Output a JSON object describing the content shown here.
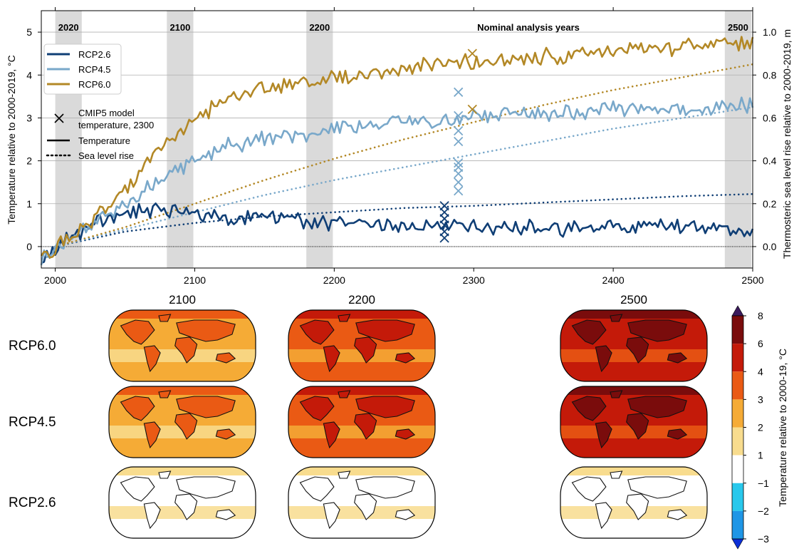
{
  "chart_data": [
    {
      "type": "line",
      "xlabel": "",
      "ylabel": "Temperature relative to 2000-2019, °C",
      "y2label": "Thermosteric sea level rise relative to 2000-2019, m",
      "xlim": [
        1990,
        2500
      ],
      "ylim": [
        -0.5,
        5.5
      ],
      "y2lim": [
        -0.1,
        1.1
      ],
      "x_ticks": [
        "2000",
        "2100",
        "2200",
        "2300",
        "2400",
        "2500"
      ],
      "y_ticks": [
        "0",
        "1",
        "2",
        "3",
        "4",
        "5"
      ],
      "y2_ticks": [
        "0.0",
        "0.2",
        "0.4",
        "0.6",
        "0.8",
        "1.0"
      ],
      "grid": "horizontal",
      "legend_placement": "top-left",
      "analysis_periods": [
        {
          "label": "2020",
          "start": 2000,
          "end": 2019
        },
        {
          "label": "2100",
          "start": 2080,
          "end": 2099
        },
        {
          "label": "2200",
          "start": 2180,
          "end": 2199
        },
        {
          "label": "2500",
          "start": 2480,
          "end": 2499
        }
      ],
      "annotation": "Nominal analysis years",
      "series": [
        {
          "name": "RCP2.6",
          "color": "#0f3e75",
          "temperature": {
            "x": [
              1990,
              2000,
              2010,
              2020,
              2030,
              2040,
              2050,
              2060,
              2070,
              2080,
              2100,
              2120,
              2150,
              2200,
              2250,
              2300,
              2350,
              2400,
              2450,
              2500
            ],
            "y": [
              -0.3,
              0.0,
              0.15,
              0.35,
              0.55,
              0.7,
              0.8,
              0.85,
              0.85,
              0.8,
              0.75,
              0.7,
              0.65,
              0.55,
              0.5,
              0.45,
              0.4,
              0.45,
              0.45,
              0.4
            ]
          },
          "sea_level": {
            "x": [
              2000,
              2050,
              2100,
              2150,
              2200,
              2250,
              2300,
              2350,
              2400,
              2450,
              2500
            ],
            "y": [
              0.0,
              0.07,
              0.11,
              0.14,
              0.16,
              0.18,
              0.19,
              0.205,
              0.22,
              0.235,
              0.245
            ]
          },
          "cmip5_2300": [
            0.2,
            0.35,
            0.5,
            0.65,
            0.8,
            0.95
          ]
        },
        {
          "name": "RCP4.5",
          "color": "#79a8ca",
          "temperature": {
            "x": [
              1990,
              2000,
              2010,
              2020,
              2030,
              2040,
              2050,
              2060,
              2080,
              2100,
              2120,
              2150,
              2200,
              2250,
              2300,
              2350,
              2400,
              2450,
              2500
            ],
            "y": [
              -0.3,
              0.0,
              0.15,
              0.4,
              0.6,
              0.8,
              1.0,
              1.2,
              1.6,
              2.0,
              2.3,
              2.5,
              2.7,
              2.9,
              3.0,
              3.1,
              3.2,
              3.25,
              3.3
            ]
          },
          "sea_level": {
            "x": [
              2000,
              2050,
              2100,
              2150,
              2200,
              2250,
              2300,
              2350,
              2400,
              2450,
              2500
            ],
            "y": [
              0.0,
              0.08,
              0.16,
              0.24,
              0.31,
              0.37,
              0.43,
              0.49,
              0.55,
              0.6,
              0.65
            ]
          },
          "cmip5_2300": [
            1.3,
            1.5,
            1.7,
            1.85,
            1.95,
            2.45,
            2.7,
            3.05,
            3.6
          ]
        },
        {
          "name": "RCP6.0",
          "color": "#b38826",
          "temperature": {
            "x": [
              1990,
              2000,
              2010,
              2020,
              2030,
              2040,
              2050,
              2060,
              2080,
              2100,
              2120,
              2150,
              2200,
              2250,
              2300,
              2350,
              2400,
              2450,
              2500
            ],
            "y": [
              -0.3,
              0.0,
              0.2,
              0.45,
              0.7,
              1.0,
              1.35,
              1.7,
              2.4,
              3.0,
              3.4,
              3.7,
              3.95,
              4.15,
              4.3,
              4.45,
              4.55,
              4.65,
              4.75
            ]
          },
          "sea_level": {
            "x": [
              2000,
              2050,
              2100,
              2150,
              2200,
              2250,
              2300,
              2350,
              2400,
              2450,
              2500
            ],
            "y": [
              0.0,
              0.09,
              0.2,
              0.31,
              0.41,
              0.5,
              0.58,
              0.66,
              0.73,
              0.79,
              0.85
            ]
          },
          "cmip5_2300": [
            3.2,
            4.5
          ]
        }
      ]
    },
    {
      "type": "heatmap",
      "panels": "global temperature change maps",
      "column_titles": [
        "2100",
        "2200",
        "2500"
      ],
      "row_labels": [
        "RCP6.0",
        "RCP4.5",
        "RCP2.6"
      ],
      "colorbar": {
        "label": "Temperature relative to 2000-19, °C",
        "ticks": [
          "−3",
          "−2",
          "−1",
          "1",
          "2",
          "3",
          "4",
          "6",
          "8"
        ],
        "levels": [
          -3,
          -2,
          -1,
          1,
          2,
          3,
          4,
          6,
          8
        ],
        "colors": [
          "#1a44e8",
          "#1f96e6",
          "#28c8ec",
          "#ffffff",
          "#f8dc8e",
          "#f5ab36",
          "#ea5a14",
          "#c41a09",
          "#7a0c0c"
        ],
        "extend": "both",
        "over_color": "#3b1a5c",
        "under_color": "#0c2fd6"
      }
    }
  ],
  "legend": {
    "entries": [
      "RCP2.6",
      "RCP4.5",
      "RCP6.0"
    ],
    "marker_label": "CMIP5 model\ntemperature, 2300",
    "marker_line1": "CMIP5 model",
    "marker_line2": "temperature, 2300",
    "solid_label": "Temperature",
    "dotted_label": "Sea level rise"
  }
}
